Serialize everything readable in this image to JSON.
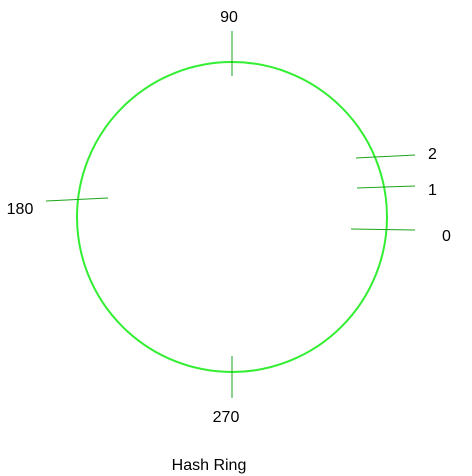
{
  "diagram": {
    "caption": "Hash Ring",
    "ring_color": "#33ee33",
    "tick_color": "#1aa51a",
    "markers": [
      {
        "id": "0",
        "label": "0"
      },
      {
        "id": "1",
        "label": "1"
      },
      {
        "id": "2",
        "label": "2"
      },
      {
        "id": "90",
        "label": "90"
      },
      {
        "id": "180",
        "label": "180"
      },
      {
        "id": "270",
        "label": "270"
      }
    ]
  }
}
